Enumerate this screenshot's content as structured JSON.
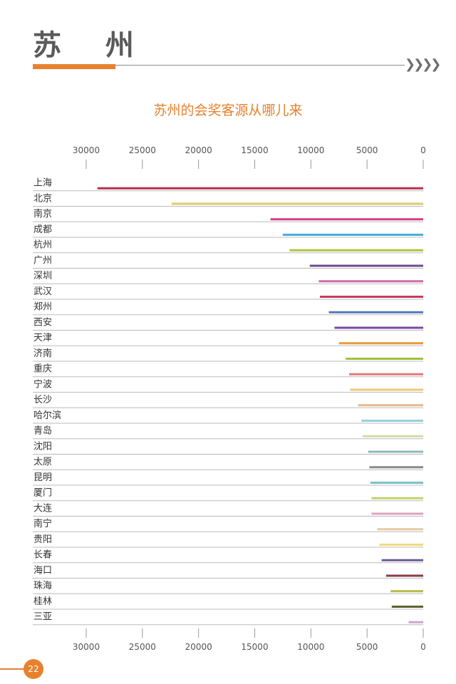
{
  "page": {
    "title": "苏 州",
    "page_number": "22",
    "accent_color": "#e8812e"
  },
  "chart_data": {
    "type": "bar",
    "orientation": "horizontal",
    "title": "苏州的会奖客源从哪儿来",
    "xlim": [
      0,
      30000
    ],
    "x_reversed": true,
    "ticks": [
      30000,
      25000,
      20000,
      15000,
      10000,
      5000,
      0
    ],
    "tick_labels": [
      "30000",
      "25000",
      "20000",
      "15000",
      "10000",
      "5000",
      "0"
    ],
    "categories": [
      "上海",
      "北京",
      "南京",
      "成都",
      "杭州",
      "广州",
      "深圳",
      "武汉",
      "郑州",
      "西安",
      "天津",
      "济南",
      "重庆",
      "宁波",
      "长沙",
      "哈尔滨",
      "青岛",
      "沈阳",
      "太原",
      "昆明",
      "厦门",
      "大连",
      "南宁",
      "贵阳",
      "长春",
      "海口",
      "珠海",
      "桂林",
      "三亚"
    ],
    "values": [
      29000,
      22400,
      13600,
      12500,
      11900,
      10100,
      9300,
      9200,
      8400,
      7900,
      7500,
      6900,
      6600,
      6500,
      5800,
      5500,
      5400,
      4900,
      4800,
      4700,
      4600,
      4600,
      4100,
      3900,
      3700,
      3300,
      2900,
      2800,
      1300
    ],
    "colors": [
      "#b5314a",
      "#dccb6a",
      "#d53b86",
      "#4aaed8",
      "#a8c83f",
      "#6c4b8c",
      "#cf6aa8",
      "#c43c5c",
      "#4f78c3",
      "#7b4aa3",
      "#e89a3c",
      "#9cc23f",
      "#e47878",
      "#ecc878",
      "#e8b890",
      "#93d2dc",
      "#d3dba5",
      "#8fb8b8",
      "#8a8a8a",
      "#7ac2c6",
      "#c2d468",
      "#e0a2c0",
      "#e8c8a0",
      "#f0dc78",
      "#6a5a94",
      "#8a3a48",
      "#b8ba4c",
      "#5a6432",
      "#c8a8cc"
    ],
    "grid": false
  }
}
